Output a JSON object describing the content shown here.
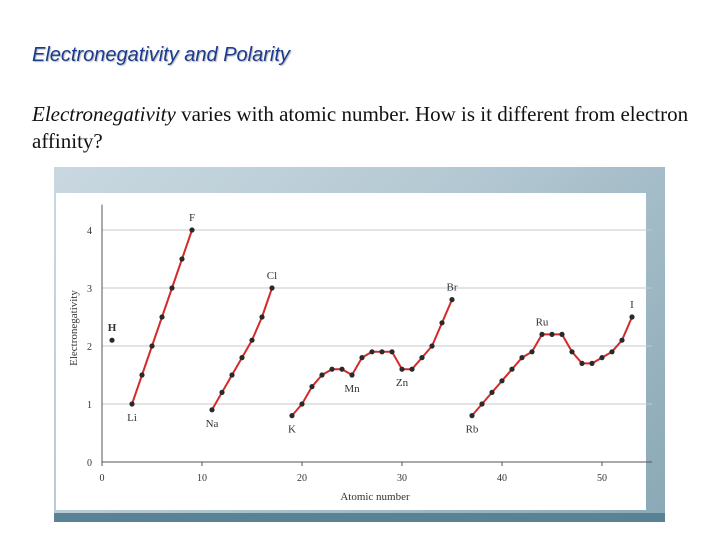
{
  "slide": {
    "title": "Electronegativity and Polarity",
    "body_term": "Electronegativity",
    "body_rest": " varies with atomic number.  How is it different from electron affinity?"
  },
  "colors": {
    "title": "#1a3b8f",
    "line": "#d42a2a",
    "point": "#2a2a2a",
    "grid": "#c8c8c8"
  },
  "chart_data": {
    "type": "line",
    "xlabel": "Atomic number",
    "ylabel": "Electronegativity",
    "xlim": [
      0,
      55
    ],
    "ylim": [
      0,
      4.3
    ],
    "x_ticks": [
      0,
      10,
      20,
      30,
      40,
      50
    ],
    "y_ticks": [
      0,
      1,
      2,
      3,
      4
    ],
    "grid": "horizontal",
    "series": [
      {
        "x": [
          1
        ],
        "y": [
          2.1
        ],
        "connected": false
      },
      {
        "x": [
          3,
          4,
          5,
          6,
          7,
          8,
          9
        ],
        "y": [
          1.0,
          1.5,
          2.0,
          2.5,
          3.0,
          3.5,
          4.0
        ]
      },
      {
        "x": [
          11,
          12,
          13,
          14,
          15,
          16,
          17
        ],
        "y": [
          0.9,
          1.2,
          1.5,
          1.8,
          2.1,
          2.5,
          3.0
        ]
      },
      {
        "x": [
          19,
          20,
          21,
          22,
          23,
          24,
          25,
          26,
          27,
          28,
          29,
          30,
          31,
          32,
          33,
          34,
          35
        ],
        "y": [
          0.8,
          1.0,
          1.3,
          1.5,
          1.6,
          1.6,
          1.5,
          1.8,
          1.9,
          1.9,
          1.9,
          1.6,
          1.6,
          1.8,
          2.0,
          2.4,
          2.8
        ]
      },
      {
        "x": [
          37,
          38,
          39,
          40,
          41,
          42,
          43,
          44,
          45,
          46,
          47,
          48,
          49,
          50,
          51,
          52,
          53
        ],
        "y": [
          0.8,
          1.0,
          1.2,
          1.4,
          1.6,
          1.8,
          1.9,
          2.2,
          2.2,
          2.2,
          1.9,
          1.7,
          1.7,
          1.8,
          1.9,
          2.1,
          2.5
        ]
      }
    ],
    "annotations": [
      {
        "text": "H",
        "x": 1,
        "y": 2.1,
        "pos": "above",
        "bold": true
      },
      {
        "text": "Li",
        "x": 3,
        "y": 1.0,
        "pos": "below"
      },
      {
        "text": "F",
        "x": 9,
        "y": 4.0,
        "pos": "above"
      },
      {
        "text": "Na",
        "x": 11,
        "y": 0.9,
        "pos": "below"
      },
      {
        "text": "Cl",
        "x": 17,
        "y": 3.0,
        "pos": "above"
      },
      {
        "text": "K",
        "x": 19,
        "y": 0.8,
        "pos": "below"
      },
      {
        "text": "Mn",
        "x": 25,
        "y": 1.5,
        "pos": "below"
      },
      {
        "text": "Zn",
        "x": 30,
        "y": 1.6,
        "pos": "below"
      },
      {
        "text": "Br",
        "x": 35,
        "y": 2.8,
        "pos": "above"
      },
      {
        "text": "Rb",
        "x": 37,
        "y": 0.8,
        "pos": "below"
      },
      {
        "text": "Ru",
        "x": 44,
        "y": 2.2,
        "pos": "above"
      },
      {
        "text": "I",
        "x": 53,
        "y": 2.5,
        "pos": "above"
      }
    ]
  }
}
